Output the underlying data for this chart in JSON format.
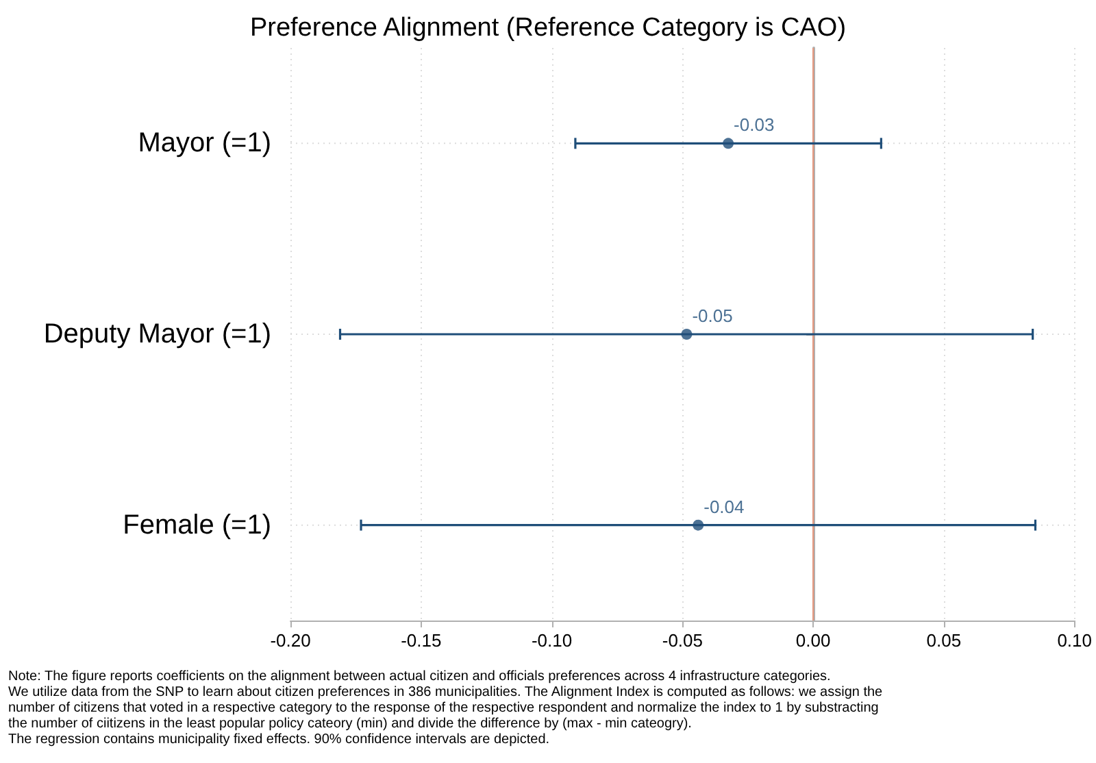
{
  "chart_data": {
    "type": "scatter",
    "orientation": "horizontal",
    "title": "Preference Alignment (Reference Category is CAO)",
    "categories": [
      "Mayor (=1)",
      "Deputy Mayor (=1)",
      "Female (=1)"
    ],
    "series": [
      {
        "color": "#1f4e79",
        "values": [
          -0.0325,
          -0.0484,
          -0.044
        ],
        "errors": [
          [
            -0.091,
            0.026
          ],
          [
            -0.181,
            0.084
          ],
          [
            -0.173,
            0.085
          ]
        ],
        "value_labels": [
          "-0.03",
          "-0.05",
          "-0.04"
        ]
      }
    ],
    "xlim": [
      -0.2,
      0.1
    ],
    "xticks": [
      {
        "value": -0.2,
        "label": "-0.20"
      },
      {
        "value": -0.15,
        "label": "-0.15"
      },
      {
        "value": -0.1,
        "label": "-0.10"
      },
      {
        "value": -0.05,
        "label": "-0.05"
      },
      {
        "value": 0,
        "label": "0.00"
      },
      {
        "value": 0.05,
        "label": "0.05"
      },
      {
        "value": 0.1,
        "label": "0.10"
      }
    ],
    "ref_lines": [
      {
        "axis": "x",
        "value": 0,
        "color": "#e8967a"
      }
    ],
    "grid": true,
    "marker": "circle",
    "annotations": [
      "Note: The figure reports coefficients on the alignment between actual citizen and officials preferences across 4 infrastructure categories.",
      "We utilize data from the SNP to learn about citizen preferences in 386 municipalities. The Alignment Index is computed as follows: we assign the",
      "number of citizens that voted in a respective category to the response of the respective respondent and normalize the index to 1 by substracting",
      "the number of ciitizens in the least popular policy cateory (min) and divide the difference by (max - min cateogry).",
      "The regression contains municipality fixed effects. 90% confidence intervals are depicted."
    ]
  }
}
